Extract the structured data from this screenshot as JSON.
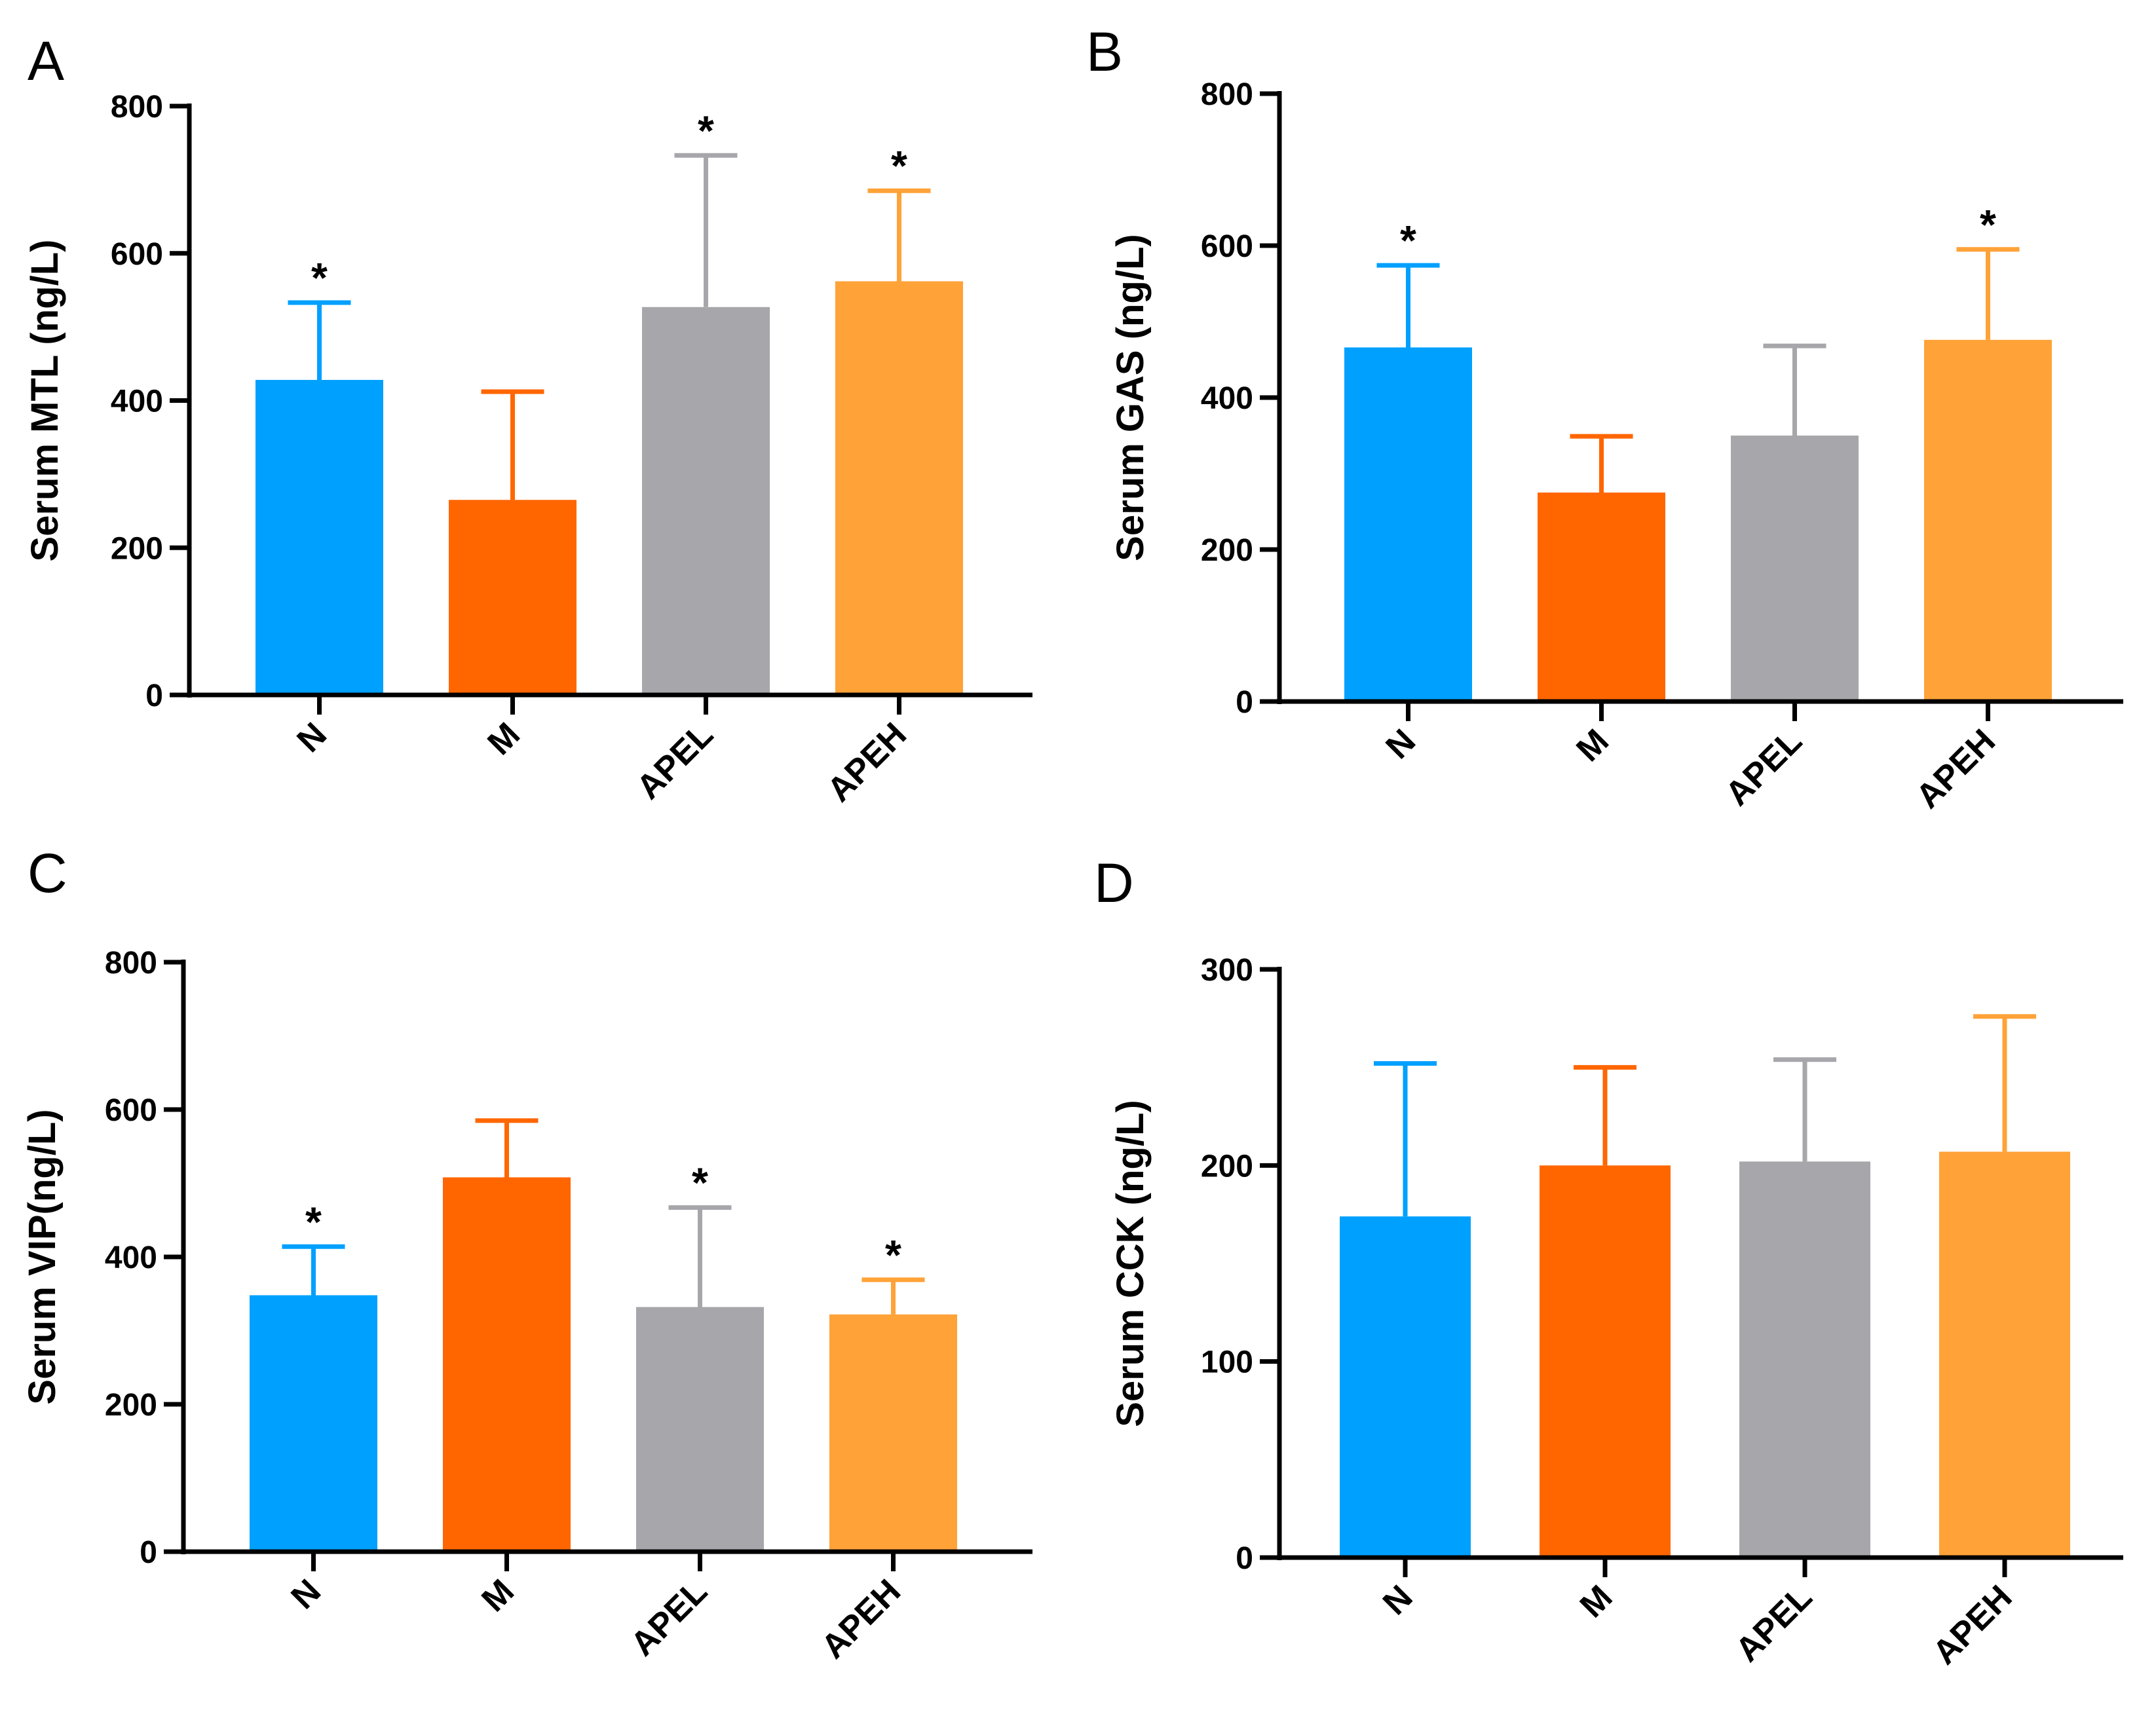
{
  "chart_data": [
    {
      "panel": "A",
      "type": "bar",
      "ylabel": "Serum MTL  (ng/L)",
      "ylim": [
        0,
        800
      ],
      "yticks": [
        "0",
        "200",
        "400",
        "600",
        "800"
      ],
      "categories": [
        "N",
        "M",
        "APEL",
        "APEH"
      ],
      "values": [
        428,
        265,
        527,
        562
      ],
      "errors": [
        105,
        147,
        206,
        123
      ],
      "significance": [
        "*",
        "",
        "*",
        "*"
      ],
      "colors": [
        "#00a0ff",
        "#ff6600",
        "#a6a6ab",
        "#ffa238"
      ]
    },
    {
      "panel": "B",
      "type": "bar",
      "ylabel": "Serum GAS (ng/L)",
      "ylim": [
        0,
        800
      ],
      "yticks": [
        "0",
        "200",
        "400",
        "600",
        "800"
      ],
      "categories": [
        "N",
        "M",
        "APEL",
        "APEH"
      ],
      "values": [
        466,
        275,
        350,
        476
      ],
      "errors": [
        108,
        74,
        118,
        119
      ],
      "significance": [
        "*",
        "",
        "",
        "*"
      ],
      "colors": [
        "#00a0ff",
        "#ff6600",
        "#a6a6ab",
        "#ffa238"
      ]
    },
    {
      "panel": "C",
      "type": "bar",
      "ylabel": "Serum VIP(ng/L)",
      "ylim": [
        0,
        800
      ],
      "yticks": [
        "0",
        "200",
        "400",
        "600",
        "800"
      ],
      "categories": [
        "N",
        "M",
        "APEL",
        "APEH"
      ],
      "values": [
        348,
        508,
        332,
        322
      ],
      "errors": [
        66,
        77,
        135,
        47
      ],
      "significance": [
        "*",
        "",
        "*",
        "*"
      ],
      "colors": [
        "#00a0ff",
        "#ff6600",
        "#a6a6ab",
        "#ffa238"
      ]
    },
    {
      "panel": "D",
      "type": "bar",
      "ylabel": "Serum CCK (ng/L)",
      "ylim": [
        0,
        300
      ],
      "yticks": [
        "0",
        "100",
        "200",
        "300"
      ],
      "categories": [
        "N",
        "M",
        "APEL",
        "APEH"
      ],
      "values": [
        174,
        200,
        202,
        207
      ],
      "errors": [
        78,
        50,
        52,
        69
      ],
      "significance": [
        "",
        "",
        "",
        ""
      ],
      "colors": [
        "#00a0ff",
        "#ff6600",
        "#a6a6ab",
        "#ffa238"
      ]
    }
  ]
}
